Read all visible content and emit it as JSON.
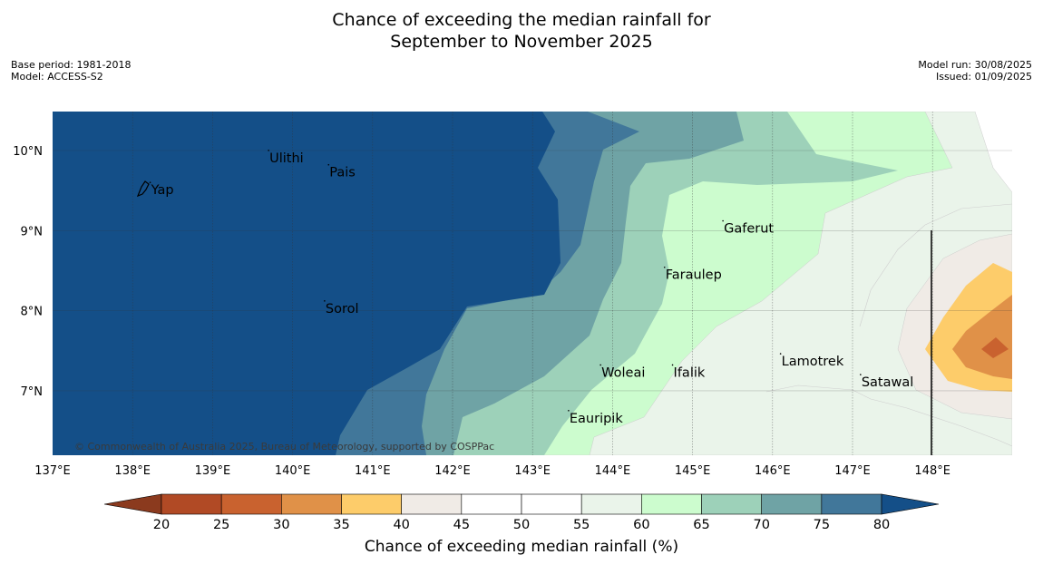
{
  "title": {
    "line1": "Chance of exceeding the median rainfall for",
    "line2": "September to November 2025"
  },
  "meta": {
    "base_period": "Base period: 1981-2018",
    "model": "Model: ACCESS-S2",
    "model_run": "Model run: 30/08/2025",
    "issued": "Issued: 01/09/2025"
  },
  "map": {
    "lon_range": [
      137,
      149
    ],
    "lat_range": [
      6.2,
      10.5
    ],
    "lon_ticks": [
      137,
      138,
      139,
      140,
      141,
      142,
      143,
      144,
      145,
      146,
      147,
      148
    ],
    "lon_tick_labels": [
      "137°E",
      "138°E",
      "139°E",
      "140°E",
      "141°E",
      "142°E",
      "143°E",
      "144°E",
      "145°E",
      "146°E",
      "147°E",
      "148°E"
    ],
    "lat_ticks": [
      7,
      8,
      9,
      10
    ],
    "lat_tick_labels": [
      "7°N",
      "8°N",
      "9°N",
      "10°N"
    ],
    "copyright": "© Commonwealth of Australia 2025, Bureau of Meteorology, supported by COSPPac",
    "places": [
      {
        "name": "Yap",
        "lon": 138.22,
        "lat": 9.5
      },
      {
        "name": "Ulithi",
        "lon": 139.7,
        "lat": 9.9
      },
      {
        "name": "Pais",
        "lon": 140.45,
        "lat": 9.72
      },
      {
        "name": "Gaferut",
        "lon": 145.38,
        "lat": 9.02
      },
      {
        "name": "Faraulep",
        "lon": 144.65,
        "lat": 8.44
      },
      {
        "name": "Sorol",
        "lon": 140.4,
        "lat": 8.02
      },
      {
        "name": "Woleai",
        "lon": 143.85,
        "lat": 7.22
      },
      {
        "name": "Ifalik",
        "lon": 144.75,
        "lat": 7.22
      },
      {
        "name": "Lamotrek",
        "lon": 146.1,
        "lat": 7.36
      },
      {
        "name": "Satawal",
        "lon": 147.1,
        "lat": 7.1
      },
      {
        "name": "Eauripik",
        "lon": 143.45,
        "lat": 6.65
      }
    ]
  },
  "colorbar": {
    "ticks": [
      "20",
      "25",
      "30",
      "35",
      "40",
      "45",
      "50",
      "55",
      "60",
      "65",
      "70",
      "75",
      "80"
    ],
    "colors": [
      "#8b3a1e",
      "#b14a25",
      "#c9622f",
      "#e09148",
      "#fdcc6a",
      "#f0ebe6",
      "#ffffff",
      "#ffffff",
      "#eaf4ea",
      "#ccfcce",
      "#9dd1b9",
      "#6fa3a5",
      "#41779a",
      "#144f88"
    ],
    "label": "Chance of exceeding median rainfall (%)"
  }
}
